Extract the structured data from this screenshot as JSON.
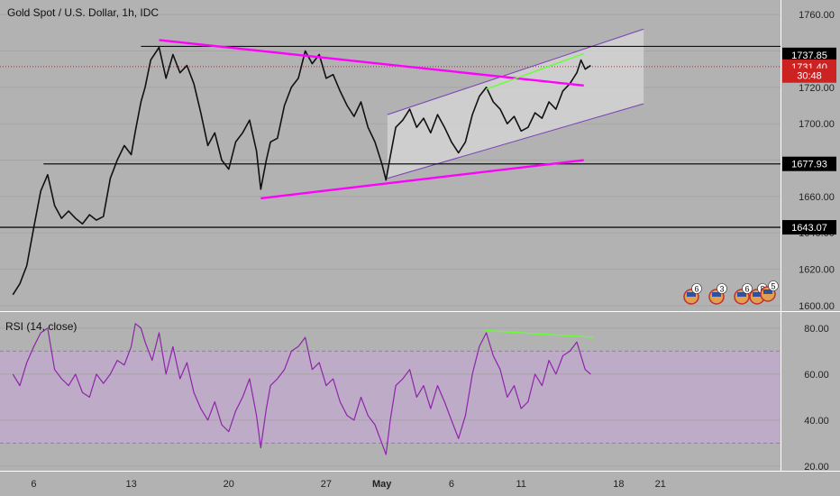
{
  "chart_data": {
    "type": "candlestick",
    "title": "Gold Spot / U.S. Dollar, 1h, IDC",
    "price_axis": {
      "range": [
        1597,
        1768
      ],
      "ticks": [
        "1760.00",
        "1740.00",
        "1720.00",
        "1700.00",
        "1680.00",
        "1660.00",
        "1640.00",
        "1620.00",
        "1600.00"
      ]
    },
    "price_tags": [
      {
        "value": 1737.85,
        "text": "1737.85",
        "bg": "#000000",
        "fg": "#ffffff"
      },
      {
        "value": 1731.4,
        "text": "1731.40",
        "bg": "#cc2222",
        "fg": "#ffffff"
      },
      {
        "value": 1726.5,
        "text": "30:48",
        "bg": "#cc2222",
        "fg": "#ffffff"
      },
      {
        "value": 1677.93,
        "text": "1677.93",
        "bg": "#000000",
        "fg": "#ffffff"
      },
      {
        "value": 1643.07,
        "text": "1643.07",
        "bg": "#000000",
        "fg": "#ffffff"
      }
    ],
    "x_axis": {
      "ticks": [
        {
          "day": 6,
          "text": "6"
        },
        {
          "day": 13,
          "text": "13"
        },
        {
          "day": 20,
          "text": "20"
        },
        {
          "day": 27,
          "text": "27"
        },
        {
          "day": 31,
          "text": "May",
          "bold": true
        },
        {
          "day": 36,
          "text": "6"
        },
        {
          "day": 41,
          "text": "11"
        },
        {
          "day": 48,
          "text": "18"
        },
        {
          "day": 51,
          "text": "21"
        }
      ]
    },
    "price_path": [
      [
        4.5,
        1606
      ],
      [
        5,
        1612
      ],
      [
        5.5,
        1622
      ],
      [
        6,
        1643
      ],
      [
        6.5,
        1663
      ],
      [
        7,
        1672
      ],
      [
        7.5,
        1655
      ],
      [
        8,
        1648
      ],
      [
        8.5,
        1652
      ],
      [
        9,
        1648
      ],
      [
        9.5,
        1645
      ],
      [
        10,
        1650
      ],
      [
        10.5,
        1647
      ],
      [
        11,
        1649
      ],
      [
        11.5,
        1670
      ],
      [
        12,
        1680
      ],
      [
        12.5,
        1688
      ],
      [
        13,
        1683
      ],
      [
        13.3,
        1696
      ],
      [
        13.7,
        1712
      ],
      [
        14,
        1720
      ],
      [
        14.4,
        1735
      ],
      [
        15,
        1742
      ],
      [
        15.5,
        1725
      ],
      [
        16,
        1738
      ],
      [
        16.5,
        1728
      ],
      [
        17,
        1732
      ],
      [
        17.5,
        1722
      ],
      [
        18,
        1706
      ],
      [
        18.5,
        1688
      ],
      [
        19,
        1695
      ],
      [
        19.5,
        1680
      ],
      [
        20,
        1675
      ],
      [
        20.5,
        1690
      ],
      [
        21,
        1695
      ],
      [
        21.5,
        1702
      ],
      [
        22,
        1685
      ],
      [
        22.3,
        1664
      ],
      [
        22.7,
        1680
      ],
      [
        23,
        1690
      ],
      [
        23.5,
        1692
      ],
      [
        24,
        1710
      ],
      [
        24.5,
        1720
      ],
      [
        25,
        1725
      ],
      [
        25.5,
        1740
      ],
      [
        26,
        1733
      ],
      [
        26.5,
        1738
      ],
      [
        27,
        1725
      ],
      [
        27.5,
        1727
      ],
      [
        28,
        1718
      ],
      [
        28.5,
        1710
      ],
      [
        29,
        1704
      ],
      [
        29.5,
        1712
      ],
      [
        30,
        1698
      ],
      [
        30.5,
        1690
      ],
      [
        31,
        1678
      ],
      [
        31.3,
        1669
      ],
      [
        31.6,
        1682
      ],
      [
        32,
        1698
      ],
      [
        32.5,
        1702
      ],
      [
        33,
        1708
      ],
      [
        33.5,
        1698
      ],
      [
        34,
        1703
      ],
      [
        34.5,
        1695
      ],
      [
        35,
        1705
      ],
      [
        35.5,
        1698
      ],
      [
        36,
        1690
      ],
      [
        36.5,
        1684
      ],
      [
        37,
        1690
      ],
      [
        37.5,
        1705
      ],
      [
        38,
        1715
      ],
      [
        38.5,
        1720
      ],
      [
        39,
        1712
      ],
      [
        39.5,
        1708
      ],
      [
        40,
        1700
      ],
      [
        40.5,
        1704
      ],
      [
        41,
        1696
      ],
      [
        41.5,
        1698
      ],
      [
        42,
        1706
      ],
      [
        42.5,
        1703
      ],
      [
        43,
        1712
      ],
      [
        43.5,
        1708
      ],
      [
        44,
        1718
      ],
      [
        44.5,
        1722
      ],
      [
        45,
        1728
      ],
      [
        45.3,
        1735
      ],
      [
        45.6,
        1730
      ],
      [
        46,
        1732
      ]
    ],
    "horizontal_levels": [
      1742.5,
      1677.93,
      1643.07
    ],
    "current_price": 1731.4,
    "trendlines": [
      {
        "from": [
          15,
          1746
        ],
        "to": [
          45.5,
          1721
        ],
        "color": "#ff00ff"
      },
      {
        "from": [
          22.3,
          1659
        ],
        "to": [
          45.5,
          1680
        ],
        "color": "#ff00ff"
      },
      {
        "from": [
          38.5,
          1719
        ],
        "to": [
          45.5,
          1738.5
        ],
        "color": "#66ff33"
      }
    ],
    "channel": {
      "upper": [
        [
          31.4,
          1705
        ],
        [
          49.8,
          1752
        ]
      ],
      "lower": [
        [
          31.4,
          1670
        ],
        [
          49.8,
          1711
        ]
      ],
      "mid": [
        [
          31.4,
          1682
        ],
        [
          49.8,
          1730
        ]
      ],
      "fill": "#d4d4d4",
      "stroke": "#7a3fb8"
    },
    "rsi": {
      "label": "RSI (14, close)",
      "range": [
        18,
        87
      ],
      "ticks": [
        "80.00",
        "60.00",
        "40.00",
        "20.00"
      ],
      "band": [
        30,
        70
      ],
      "color": "#8e24aa",
      "path": [
        [
          4.5,
          60
        ],
        [
          5,
          55
        ],
        [
          5.5,
          65
        ],
        [
          6,
          72
        ],
        [
          6.5,
          78
        ],
        [
          7,
          80
        ],
        [
          7.5,
          62
        ],
        [
          8,
          58
        ],
        [
          8.5,
          55
        ],
        [
          9,
          60
        ],
        [
          9.5,
          52
        ],
        [
          10,
          50
        ],
        [
          10.5,
          60
        ],
        [
          11,
          56
        ],
        [
          11.5,
          60
        ],
        [
          12,
          66
        ],
        [
          12.5,
          64
        ],
        [
          13,
          72
        ],
        [
          13.3,
          82
        ],
        [
          13.7,
          80
        ],
        [
          14,
          74
        ],
        [
          14.5,
          66
        ],
        [
          15,
          78
        ],
        [
          15.5,
          60
        ],
        [
          16,
          72
        ],
        [
          16.5,
          58
        ],
        [
          17,
          65
        ],
        [
          17.5,
          52
        ],
        [
          18,
          45
        ],
        [
          18.5,
          40
        ],
        [
          19,
          48
        ],
        [
          19.5,
          38
        ],
        [
          20,
          35
        ],
        [
          20.5,
          44
        ],
        [
          21,
          50
        ],
        [
          21.5,
          58
        ],
        [
          22,
          42
        ],
        [
          22.3,
          28
        ],
        [
          22.7,
          45
        ],
        [
          23,
          55
        ],
        [
          23.5,
          58
        ],
        [
          24,
          62
        ],
        [
          24.5,
          70
        ],
        [
          25,
          72
        ],
        [
          25.5,
          76
        ],
        [
          26,
          62
        ],
        [
          26.5,
          65
        ],
        [
          27,
          55
        ],
        [
          27.5,
          58
        ],
        [
          28,
          48
        ],
        [
          28.5,
          42
        ],
        [
          29,
          40
        ],
        [
          29.5,
          50
        ],
        [
          30,
          42
        ],
        [
          30.5,
          38
        ],
        [
          31,
          30
        ],
        [
          31.3,
          25
        ],
        [
          31.6,
          40
        ],
        [
          32,
          55
        ],
        [
          32.5,
          58
        ],
        [
          33,
          62
        ],
        [
          33.5,
          50
        ],
        [
          34,
          55
        ],
        [
          34.5,
          45
        ],
        [
          35,
          55
        ],
        [
          35.5,
          48
        ],
        [
          36,
          40
        ],
        [
          36.5,
          32
        ],
        [
          37,
          42
        ],
        [
          37.5,
          60
        ],
        [
          38,
          72
        ],
        [
          38.5,
          78
        ],
        [
          39,
          68
        ],
        [
          39.5,
          62
        ],
        [
          40,
          50
        ],
        [
          40.5,
          55
        ],
        [
          41,
          45
        ],
        [
          41.5,
          48
        ],
        [
          42,
          60
        ],
        [
          42.5,
          55
        ],
        [
          43,
          66
        ],
        [
          43.5,
          60
        ],
        [
          44,
          68
        ],
        [
          44.5,
          70
        ],
        [
          45,
          74
        ],
        [
          45.3,
          68
        ],
        [
          45.6,
          62
        ],
        [
          46,
          60
        ]
      ],
      "trendline": {
        "from": [
          38.4,
          79
        ],
        "to": [
          46.2,
          76
        ],
        "color": "#66ff33"
      }
    },
    "events": [
      "6",
      "3",
      "6",
      "8",
      "5"
    ]
  }
}
